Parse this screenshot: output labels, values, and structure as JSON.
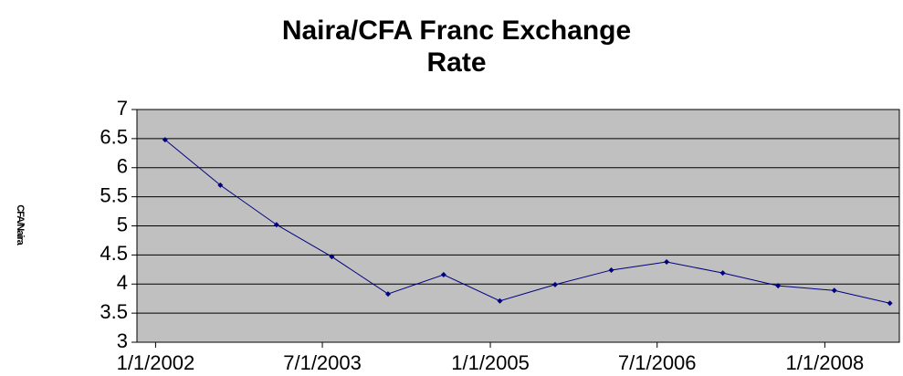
{
  "chart_data": {
    "type": "line",
    "title": "Naira/CFA Franc Exchange Rate",
    "y_label": "CFA/Naira",
    "x": [
      "2/1/2002",
      "8/1/2002",
      "2/1/2003",
      "8/1/2003",
      "2/1/2004",
      "8/1/2004",
      "2/1/2005",
      "8/1/2005",
      "2/1/2006",
      "8/1/2006",
      "2/1/2007",
      "8/1/2007",
      "2/1/2008",
      "8/1/2008"
    ],
    "series": [
      {
        "name": "CFA/Naira",
        "color": "#000080",
        "values": [
          6.48,
          5.7,
          5.02,
          4.47,
          3.83,
          4.16,
          3.71,
          3.99,
          4.24,
          4.38,
          4.19,
          3.97,
          3.89,
          3.67
        ]
      }
    ],
    "xlim": [
      "11/1/2001",
      "9/1/2008"
    ],
    "xticks": [
      "1/1/2002",
      "7/1/2003",
      "1/1/2005",
      "7/1/2006",
      "1/1/2008"
    ],
    "ylim": [
      3,
      7
    ],
    "yticks": [
      3,
      3.5,
      4,
      4.5,
      5,
      5.5,
      6,
      6.5,
      7
    ],
    "grid": true,
    "plot_background": "#c0c0c0"
  }
}
